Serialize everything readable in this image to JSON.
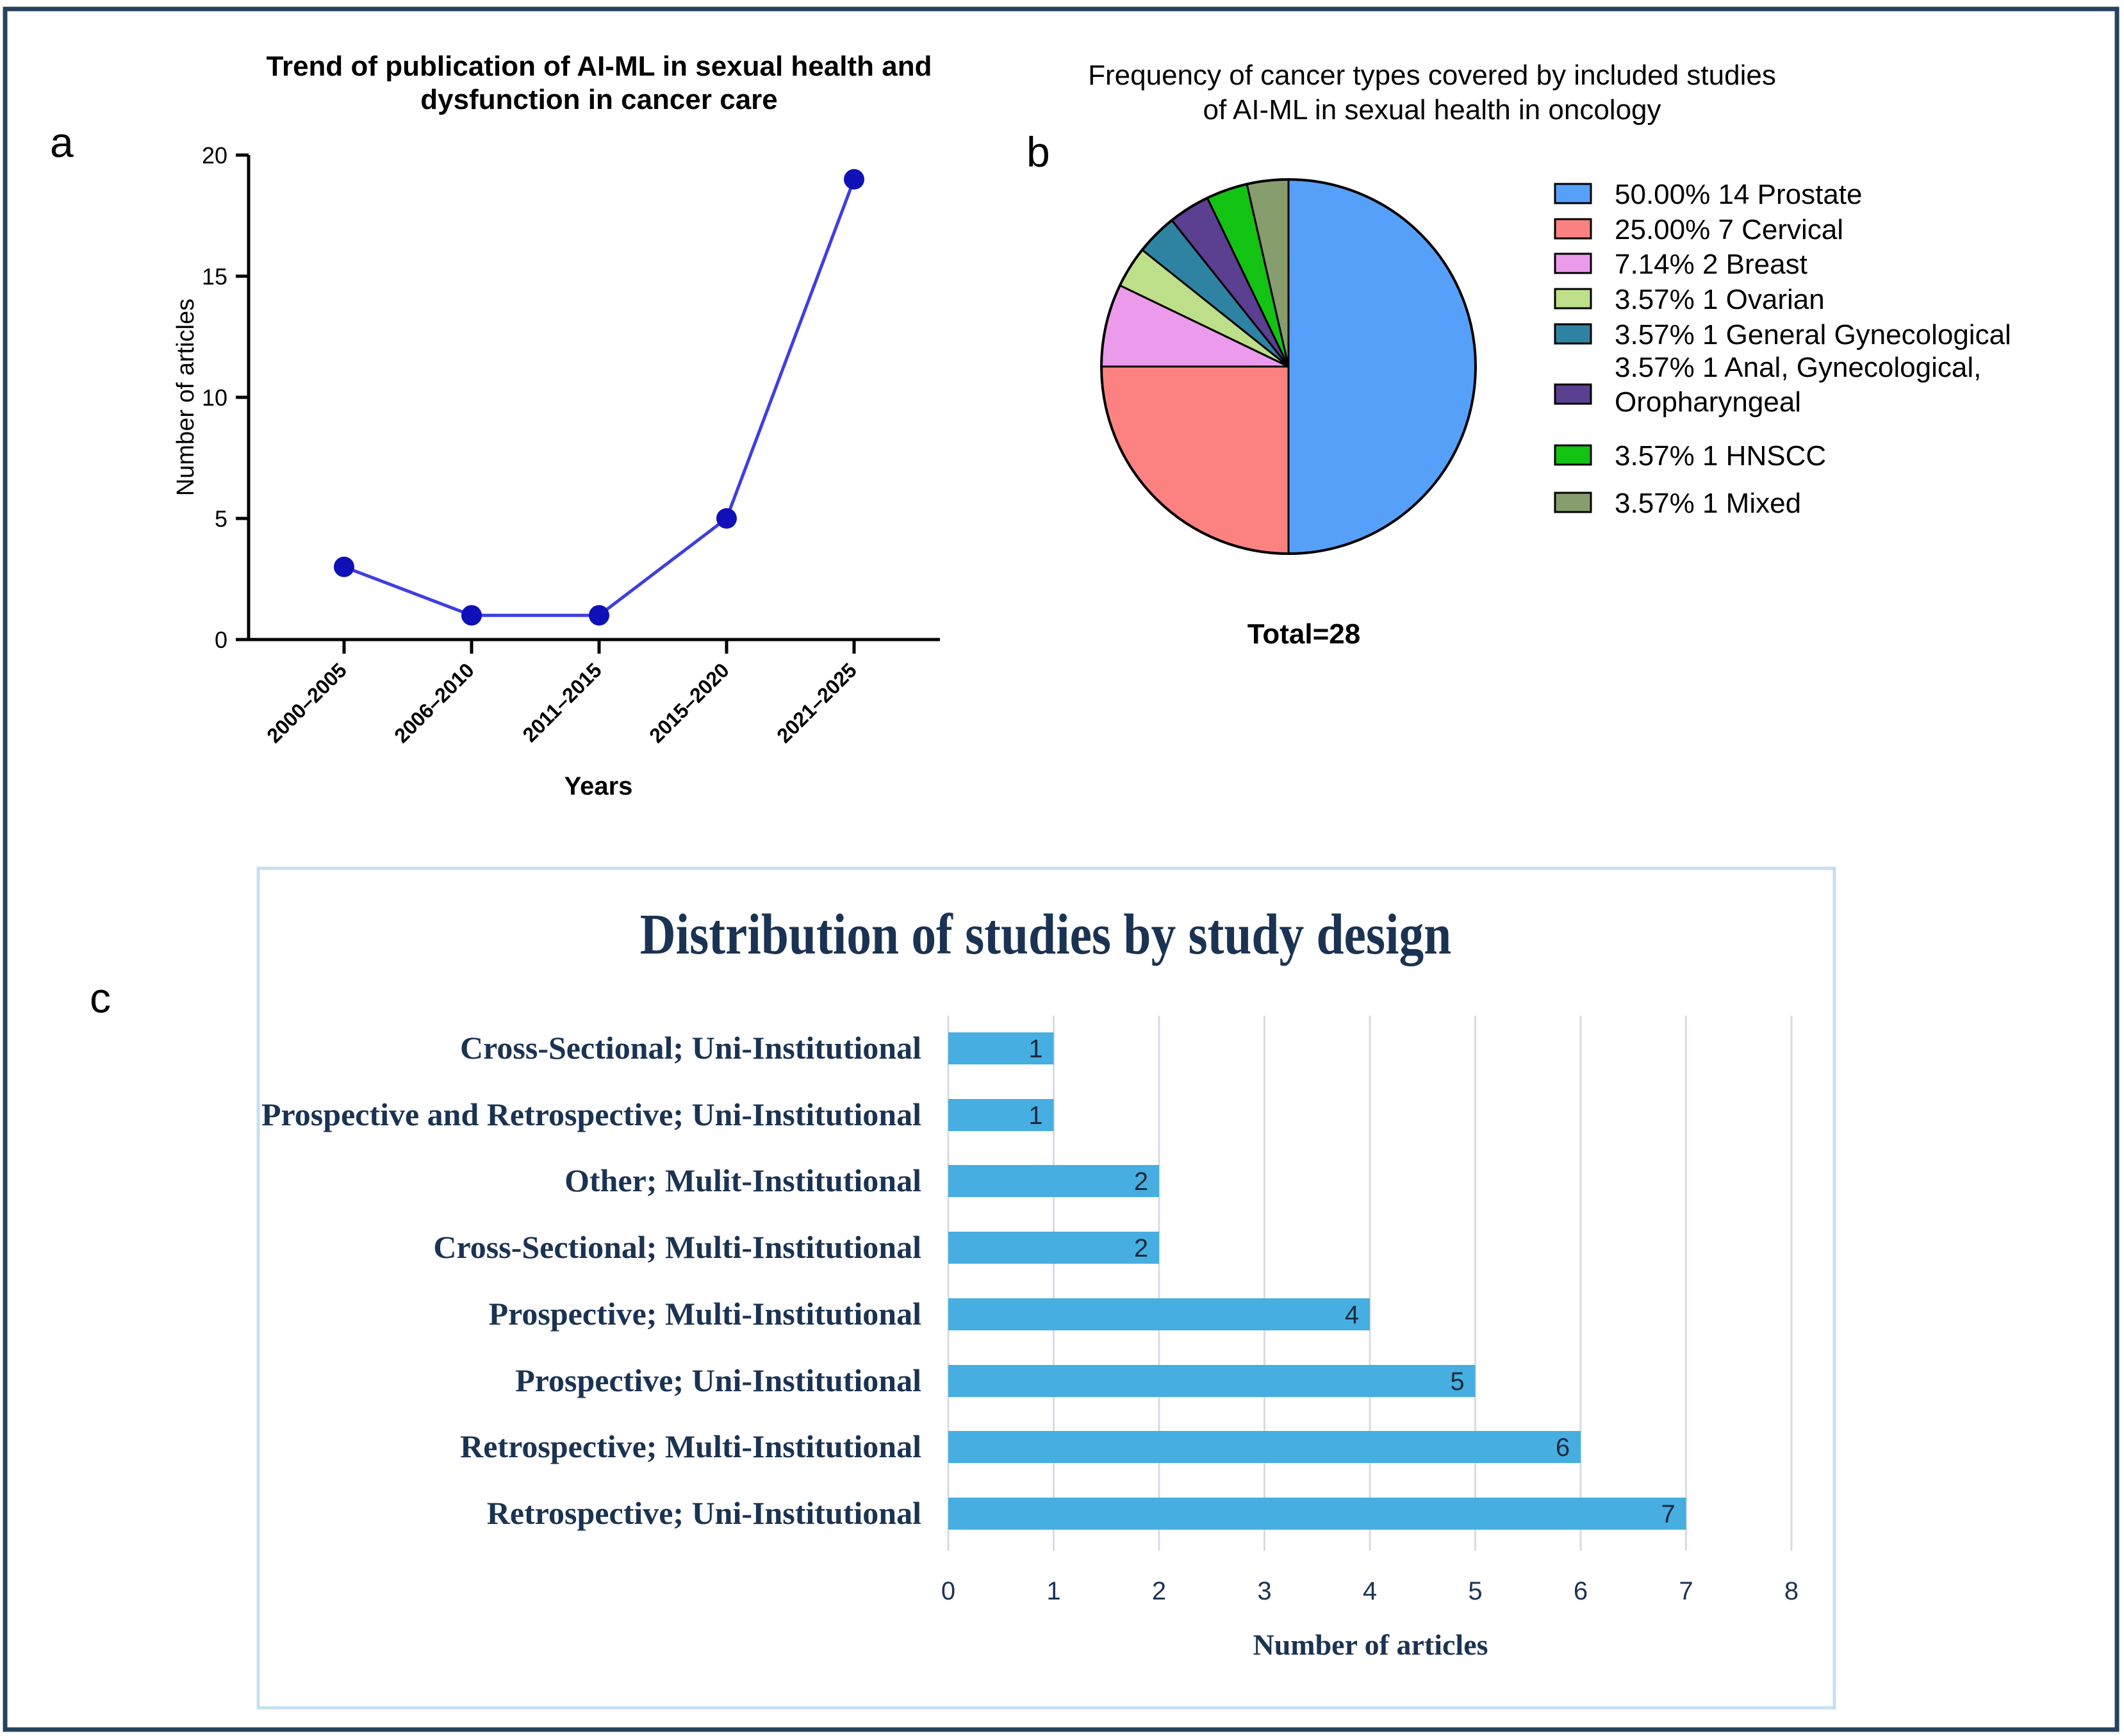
{
  "panel_labels": {
    "a": "a",
    "b": "b",
    "c": "c"
  },
  "chart_data": [
    {
      "id": "a",
      "type": "line",
      "title_lines": [
        "Trend of publication of AI-ML in sexual health and",
        "dysfunction in cancer care"
      ],
      "xlabel": "Years",
      "ylabel": "Number of articles",
      "categories": [
        "2000–2005",
        "2006–2010",
        "2011–2015",
        "2015–2020",
        "2021–2025"
      ],
      "values": [
        3,
        1,
        1,
        5,
        19
      ],
      "ylim": [
        0,
        20
      ],
      "yticks": [
        0,
        5,
        10,
        15,
        20
      ],
      "grid": false,
      "color": "#3d3fe0",
      "marker_color": "#1010b8"
    },
    {
      "id": "b",
      "type": "pie",
      "title_lines": [
        "Frequency of cancer types covered by included studies",
        "of AI-ML in sexual health in oncology"
      ],
      "total_label": "Total=28",
      "legend_position": "right",
      "slices": [
        {
          "percent": "50.00%",
          "count": 14,
          "name": "Prostate",
          "color": "#56a0fa"
        },
        {
          "percent": "25.00%",
          "count": 7,
          "name": "Cervical",
          "color": "#fc8282"
        },
        {
          "percent": "7.14%",
          "count": 2,
          "name": "Breast",
          "color": "#ec9aec"
        },
        {
          "percent": "3.57%",
          "count": 1,
          "name": "Ovarian",
          "color": "#bedf8a"
        },
        {
          "percent": "3.57%",
          "count": 1,
          "name": "General Gynecological",
          "color": "#2e83a3"
        },
        {
          "percent": "3.57%",
          "count": 1,
          "name": "Anal, Gynecological, Oropharyngeal",
          "color": "#5b3f91"
        },
        {
          "percent": "3.57%",
          "count": 1,
          "name": "HNSCC",
          "color": "#13c313"
        },
        {
          "percent": "3.57%",
          "count": 1,
          "name": "Mixed",
          "color": "#879d6e"
        }
      ]
    },
    {
      "id": "c",
      "type": "bar",
      "orientation": "horizontal",
      "title": "Distribution of studies by study design",
      "xlabel": "Number of articles",
      "categories": [
        "Cross-Sectional; Uni-Institutional",
        "Prospective and Retrospective; Uni-Institutional",
        "Other; Mulit-Institutional",
        "Cross-Sectional; Multi-Institutional",
        "Prospective; Multi-Institutional",
        "Prospective; Uni-Institutional",
        "Retrospective; Multi-Institutional",
        "Retrospective; Uni-Institutional"
      ],
      "values": [
        1,
        1,
        2,
        2,
        4,
        5,
        6,
        7
      ],
      "xlim": [
        0,
        8
      ],
      "xticks": [
        0,
        1,
        2,
        3,
        4,
        5,
        6,
        7,
        8
      ],
      "grid": true,
      "bar_color": "#46aee0",
      "title_color": "#1b3353"
    }
  ]
}
